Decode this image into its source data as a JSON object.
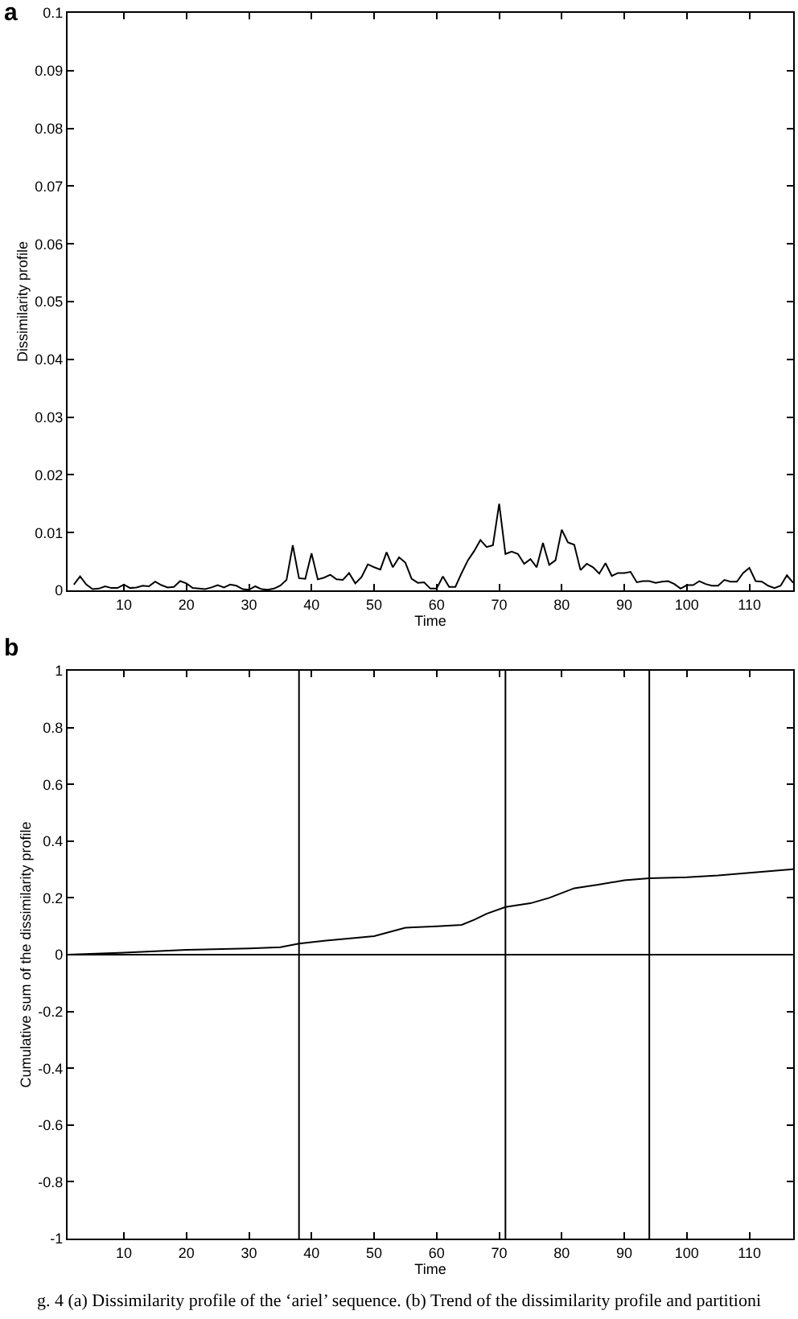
{
  "chart_data": [
    {
      "type": "line",
      "title": "a",
      "xlabel": "Time",
      "ylabel": "Dissimilarity profile",
      "color": "#000000",
      "line_style": "solid",
      "x": [
        2,
        3,
        4,
        5,
        6,
        7,
        8,
        9,
        10,
        11,
        12,
        13,
        14,
        15,
        16,
        17,
        18,
        19,
        20,
        21,
        22,
        23,
        24,
        25,
        26,
        27,
        28,
        29,
        30,
        31,
        32,
        33,
        34,
        35,
        36,
        37,
        38,
        39,
        40,
        41,
        42,
        43,
        44,
        45,
        46,
        47,
        48,
        49,
        50,
        51,
        52,
        53,
        54,
        55,
        56,
        57,
        58,
        59,
        60,
        61,
        62,
        63,
        64,
        65,
        66,
        67,
        68,
        69,
        70,
        71,
        72,
        73,
        74,
        75,
        76,
        77,
        78,
        79,
        80,
        81,
        82,
        83,
        84,
        85,
        86,
        87,
        88,
        89,
        90,
        91,
        92,
        93,
        94,
        95,
        96,
        97,
        98,
        99,
        100,
        101,
        102,
        103,
        104,
        105,
        106,
        107,
        108,
        109,
        110,
        111,
        112,
        113,
        114,
        115,
        116,
        117
      ],
      "values": [
        0.001,
        0.0024,
        0.001,
        0.0002,
        0.0003,
        0.0007,
        0.0004,
        0.0004,
        0.001,
        0.0004,
        0.0005,
        0.0008,
        0.0007,
        0.0015,
        0.0009,
        0.0005,
        0.0006,
        0.0016,
        0.0012,
        0.0004,
        0.0003,
        0.0002,
        0.0005,
        0.0009,
        0.0005,
        0.001,
        0.0008,
        0.0002,
        0.0001,
        0.0007,
        0.0002,
        0.0001,
        0.0003,
        0.0008,
        0.0018,
        0.0078,
        0.0021,
        0.002,
        0.0064,
        0.0019,
        0.0022,
        0.0027,
        0.0019,
        0.0018,
        0.003,
        0.0012,
        0.0023,
        0.0045,
        0.004,
        0.0036,
        0.0066,
        0.004,
        0.0057,
        0.0048,
        0.002,
        0.0013,
        0.0014,
        0.0003,
        0.0003,
        0.0024,
        0.0006,
        0.0006,
        0.003,
        0.0052,
        0.0068,
        0.0087,
        0.0075,
        0.0078,
        0.015,
        0.0063,
        0.0067,
        0.0063,
        0.0046,
        0.0054,
        0.004,
        0.0082,
        0.0044,
        0.0052,
        0.0105,
        0.0083,
        0.0079,
        0.0035,
        0.0046,
        0.004,
        0.0029,
        0.0047,
        0.0025,
        0.003,
        0.003,
        0.0032,
        0.0014,
        0.0016,
        0.0016,
        0.0013,
        0.0015,
        0.0016,
        0.0011,
        0.0003,
        0.0009,
        0.0009,
        0.0016,
        0.0011,
        0.0008,
        0.0008,
        0.0018,
        0.0015,
        0.0015,
        0.003,
        0.0039,
        0.0016,
        0.0015,
        0.0008,
        0.0004,
        0.0008,
        0.0026,
        0.0013
      ],
      "xlim": [
        1,
        117
      ],
      "xticks": [
        10,
        20,
        30,
        40,
        50,
        60,
        70,
        80,
        90,
        100,
        110
      ],
      "ylim": [
        0,
        0.1
      ],
      "yticks": [
        0,
        0.01,
        0.02,
        0.03,
        0.04,
        0.05,
        0.06,
        0.07,
        0.08,
        0.09,
        0.1
      ]
    },
    {
      "type": "line",
      "title": "b",
      "xlabel": "Time",
      "ylabel": "Cumulative sum of the dissimilarity profile",
      "color": "#000000",
      "line_style": "solid",
      "x": [
        1,
        10,
        20,
        30,
        35,
        38,
        42,
        50,
        55,
        60,
        64,
        66,
        68,
        71,
        75,
        78,
        82,
        86,
        90,
        94,
        100,
        105,
        110,
        117
      ],
      "values": [
        0,
        0.007,
        0.017,
        0.022,
        0.026,
        0.039,
        0.049,
        0.065,
        0.095,
        0.1,
        0.105,
        0.123,
        0.144,
        0.168,
        0.181,
        0.2,
        0.234,
        0.247,
        0.262,
        0.269,
        0.273,
        0.279,
        0.288,
        0.301
      ],
      "xlim": [
        1,
        117
      ],
      "xticks": [
        10,
        20,
        30,
        40,
        50,
        60,
        70,
        80,
        90,
        100,
        110
      ],
      "ylim": [
        -1,
        1
      ],
      "yticks": [
        -1,
        -0.8,
        -0.6,
        -0.4,
        -0.2,
        0,
        0.2,
        0.4,
        0.6,
        0.8,
        1
      ],
      "ref_lines": [
        {
          "axis": "y",
          "value": 0,
          "color": "#000000"
        },
        {
          "axis": "x",
          "value": 38,
          "color": "#000000"
        },
        {
          "axis": "x",
          "value": 71,
          "color": "#000000"
        },
        {
          "axis": "x",
          "value": 94,
          "color": "#000000"
        }
      ],
      "annotations": [
        "g. 4  (a) Dissimilarity profile of the ‘ariel’ sequence. (b) Trend of the dissimilarity profile and partitioni"
      ]
    }
  ]
}
